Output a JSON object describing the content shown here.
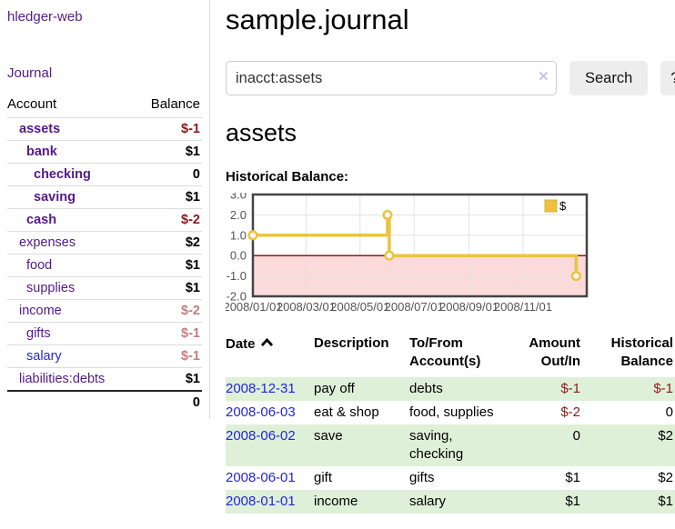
{
  "app": {
    "brand": "hledger-web",
    "nav_journal": "Journal"
  },
  "colors": {
    "link_purple": "#551a8b",
    "link_blue": "#2424dd",
    "negative": "#8b1a1a",
    "negative_soft": "#c47d7d",
    "row_stripe_green": "#dff0d8",
    "chart_gold": "#edc240",
    "chart_negative_region": "#fbdada",
    "chart_zero_line": "#8b0000",
    "chart_grid": "#e3e3e3",
    "chart_border": "#444444"
  },
  "sidebar": {
    "header": {
      "account": "Account",
      "balance": "Balance"
    },
    "accounts": [
      {
        "name": "assets",
        "depth": 1,
        "bold": true,
        "balance": "$-1",
        "bal_class": "neg"
      },
      {
        "name": "bank",
        "depth": 2,
        "bold": true,
        "balance": "$1",
        "bal_class": ""
      },
      {
        "name": "checking",
        "depth": 3,
        "bold": true,
        "balance": "0",
        "bal_class": ""
      },
      {
        "name": "saving",
        "depth": 3,
        "bold": true,
        "balance": "$1",
        "bal_class": ""
      },
      {
        "name": "cash",
        "depth": 2,
        "bold": true,
        "balance": "$-2",
        "bal_class": "neg"
      },
      {
        "name": "expenses",
        "depth": 1,
        "bold": false,
        "balance": "$2",
        "bal_class": ""
      },
      {
        "name": "food",
        "depth": 2,
        "bold": false,
        "balance": "$1",
        "bal_class": ""
      },
      {
        "name": "supplies",
        "depth": 2,
        "bold": false,
        "balance": "$1",
        "bal_class": ""
      },
      {
        "name": "income",
        "depth": 1,
        "bold": false,
        "balance": "$-2",
        "bal_class": "neg-soft"
      },
      {
        "name": "gifts",
        "depth": 2,
        "bold": false,
        "balance": "$-1",
        "bal_class": "neg-soft"
      },
      {
        "name": "salary",
        "depth": 2,
        "bold": false,
        "balance": "$-1",
        "bal_class": "neg-soft",
        "link": "blue"
      },
      {
        "name": "liabilities:debts",
        "depth": 1,
        "bold": false,
        "balance": "$1",
        "bal_class": ""
      }
    ],
    "total": "0"
  },
  "main": {
    "title": "sample.journal",
    "search": {
      "value": "inacct:assets",
      "clear_label": "×",
      "search_button": "Search",
      "help_button": "?"
    },
    "account_heading": "assets",
    "chart_label": "Historical Balance:"
  },
  "chart_data": {
    "type": "line",
    "step": true,
    "title": "Historical Balance",
    "legend": "$",
    "series": [
      {
        "name": "$",
        "color": "#edc240",
        "points": [
          [
            "2008-01-01",
            1
          ],
          [
            "2008-06-01",
            2
          ],
          [
            "2008-06-03",
            0
          ],
          [
            "2008-12-31",
            -1
          ]
        ],
        "points_days": [
          [
            0,
            1
          ],
          [
            152,
            2
          ],
          [
            154,
            0
          ],
          [
            365,
            -1
          ]
        ]
      }
    ],
    "ylim": [
      -2,
      3
    ],
    "y_ticks": [
      3.0,
      2.0,
      1.0,
      0.0,
      -1.0,
      -2.0
    ],
    "y_tick_labels": [
      "3.0",
      "2.0",
      "1.0",
      "0.0",
      "-1.0",
      "-2.0"
    ],
    "x_tick_labels": [
      "2008/01/01",
      "2008/03/01",
      "2008/05/01",
      "2008/07/01",
      "2008/09/01",
      "2008/11/01"
    ],
    "x_tick_days": [
      0,
      60,
      121,
      182,
      244,
      305
    ],
    "x_range_days": [
      0,
      377
    ],
    "grid": true,
    "negative_region_shaded": true,
    "legend_position": "top-right"
  },
  "register": {
    "headers": {
      "date": "Date",
      "description": "Description",
      "accounts": "To/From Account(s)",
      "amount": "Amount Out/In",
      "historical": "Historical Balance"
    },
    "rows": [
      {
        "date": "2008-12-31",
        "description": "pay off",
        "accounts": "debts",
        "amount": "$-1",
        "amount_neg": true,
        "historical": "$-1",
        "historical_neg": true
      },
      {
        "date": "2008-06-03",
        "description": "eat & shop",
        "accounts": "food, supplies",
        "amount": "$-2",
        "amount_neg": true,
        "historical": "0",
        "historical_neg": false
      },
      {
        "date": "2008-06-02",
        "description": "save",
        "accounts": "saving, checking",
        "amount": "0",
        "amount_neg": false,
        "historical": "$2",
        "historical_neg": false
      },
      {
        "date": "2008-06-01",
        "description": "gift",
        "accounts": "gifts",
        "amount": "$1",
        "amount_neg": false,
        "historical": "$2",
        "historical_neg": false
      },
      {
        "date": "2008-01-01",
        "description": "income",
        "accounts": "salary",
        "amount": "$1",
        "amount_neg": false,
        "historical": "$1",
        "historical_neg": false
      }
    ]
  }
}
